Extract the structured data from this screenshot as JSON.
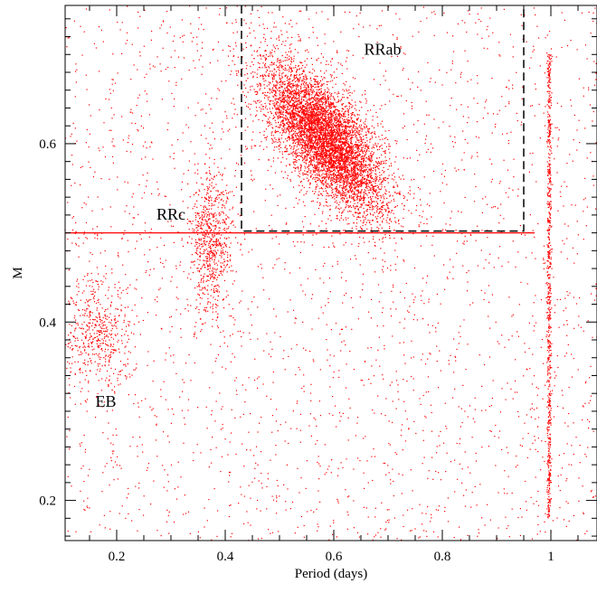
{
  "chart_data": {
    "type": "scatter",
    "xlabel": "Period (days)",
    "ylabel": "M",
    "xlim": [
      0.105,
      1.085
    ],
    "ylim": [
      0.155,
      0.755
    ],
    "x_ticks": [
      "0.2",
      "0.4",
      "0.6",
      "0.8",
      "1"
    ],
    "y_ticks": [
      "0.2",
      "0.4",
      "0.6"
    ],
    "x_tick_values": [
      0.2,
      0.4,
      0.6,
      0.8,
      1.0
    ],
    "y_tick_values": [
      0.2,
      0.4,
      0.6
    ],
    "grid": false,
    "marker_color": "#ff0000",
    "box_color": "#000000",
    "annotations": [
      {
        "text": "RRab",
        "x": 0.69,
        "y": 0.7
      },
      {
        "text": "RRc",
        "x": 0.3,
        "y": 0.515
      },
      {
        "text": "EB",
        "x": 0.18,
        "y": 0.305
      }
    ],
    "rrab_box": {
      "x0": 0.43,
      "x1": 0.95,
      "y0": 0.502,
      "y1": 0.755
    },
    "horizontal_line_y": 0.5,
    "vertical_line_x": 0.997,
    "clusters": [
      {
        "label": "RRab",
        "center_x": 0.585,
        "center_y": 0.605,
        "spread_x": 0.055,
        "spread_y": 0.04
      },
      {
        "label": "RRc",
        "center_x": 0.375,
        "center_y": 0.49,
        "spread_x": 0.02,
        "spread_y": 0.04
      },
      {
        "label": "EB",
        "center_x": 0.165,
        "center_y": 0.385,
        "spread_x": 0.035,
        "spread_y": 0.03
      }
    ]
  }
}
